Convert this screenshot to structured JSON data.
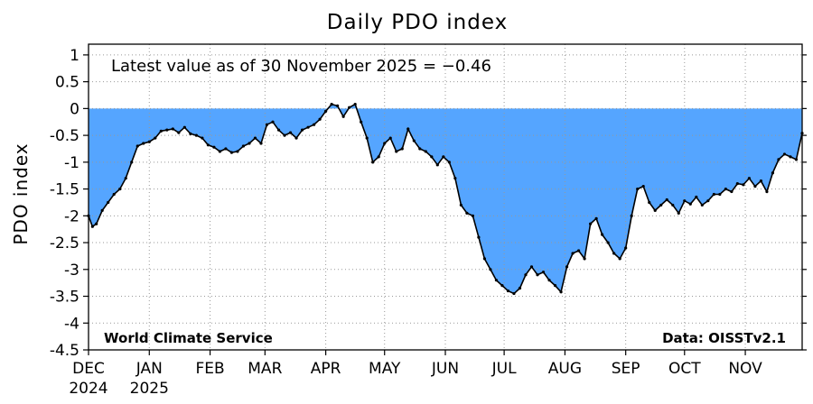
{
  "chart_data": {
    "type": "area",
    "title": "Daily PDO index",
    "ylabel": "PDO index",
    "xlabel": "",
    "annotation": "Latest value as of 30 November 2025 = −0.46",
    "credit_left": "World Climate Service",
    "credit_right": "Data: OISSTv2.1",
    "ylim": [
      -4.5,
      1.2
    ],
    "yticks": [
      1,
      0.5,
      0,
      -0.5,
      -1,
      -1.5,
      -2,
      -2.5,
      -3,
      -3.5,
      -4,
      -4.5
    ],
    "ytick_labels": [
      "1",
      "0.5",
      "0",
      "-0.5",
      "-1",
      "-1.5",
      "-2",
      "-2.5",
      "-3",
      "-3.5",
      "-4",
      "-4.5"
    ],
    "xlim": [
      "2024-12-01",
      "2025-11-30"
    ],
    "xticks": [
      {
        "date": "2024-12-01",
        "label": "DEC",
        "label2": "2024"
      },
      {
        "date": "2025-01-01",
        "label": "JAN",
        "label2": "2025"
      },
      {
        "date": "2025-02-01",
        "label": "FEB",
        "label2": ""
      },
      {
        "date": "2025-03-01",
        "label": "MAR",
        "label2": ""
      },
      {
        "date": "2025-04-01",
        "label": "APR",
        "label2": ""
      },
      {
        "date": "2025-05-01",
        "label": "MAY",
        "label2": ""
      },
      {
        "date": "2025-06-01",
        "label": "JUN",
        "label2": ""
      },
      {
        "date": "2025-07-01",
        "label": "JUL",
        "label2": ""
      },
      {
        "date": "2025-08-01",
        "label": "AUG",
        "label2": ""
      },
      {
        "date": "2025-09-01",
        "label": "SEP",
        "label2": ""
      },
      {
        "date": "2025-10-01",
        "label": "OCT",
        "label2": ""
      },
      {
        "date": "2025-11-01",
        "label": "NOV",
        "label2": ""
      }
    ],
    "grid": true,
    "fill_color": "#55a5ff",
    "line_color": "#000000",
    "series": [
      {
        "x": [
          "2024-12-01",
          "2024-12-03",
          "2024-12-05",
          "2024-12-08",
          "2024-12-11",
          "2024-12-14",
          "2024-12-17",
          "2024-12-20",
          "2024-12-23",
          "2024-12-26",
          "2024-12-29",
          "2025-01-01",
          "2025-01-04",
          "2025-01-07",
          "2025-01-10",
          "2025-01-13",
          "2025-01-16",
          "2025-01-19",
          "2025-01-22",
          "2025-01-25",
          "2025-01-28",
          "2025-01-31",
          "2025-02-03",
          "2025-02-06",
          "2025-02-09",
          "2025-02-12",
          "2025-02-15",
          "2025-02-18",
          "2025-02-21",
          "2025-02-24",
          "2025-02-27",
          "2025-03-02",
          "2025-03-05",
          "2025-03-08",
          "2025-03-11",
          "2025-03-14",
          "2025-03-17",
          "2025-03-20",
          "2025-03-23",
          "2025-03-26",
          "2025-03-29",
          "2025-04-01",
          "2025-04-04",
          "2025-04-07",
          "2025-04-10",
          "2025-04-13",
          "2025-04-16",
          "2025-04-19",
          "2025-04-22",
          "2025-04-25",
          "2025-04-28",
          "2025-05-01",
          "2025-05-04",
          "2025-05-07",
          "2025-05-10",
          "2025-05-13",
          "2025-05-16",
          "2025-05-19",
          "2025-05-22",
          "2025-05-25",
          "2025-05-28",
          "2025-05-31",
          "2025-06-03",
          "2025-06-06",
          "2025-06-09",
          "2025-06-12",
          "2025-06-15",
          "2025-06-18",
          "2025-06-21",
          "2025-06-24",
          "2025-06-27",
          "2025-06-30",
          "2025-07-03",
          "2025-07-06",
          "2025-07-09",
          "2025-07-12",
          "2025-07-15",
          "2025-07-18",
          "2025-07-21",
          "2025-07-24",
          "2025-07-27",
          "2025-07-30",
          "2025-08-02",
          "2025-08-05",
          "2025-08-08",
          "2025-08-11",
          "2025-08-14",
          "2025-08-17",
          "2025-08-20",
          "2025-08-23",
          "2025-08-26",
          "2025-08-29",
          "2025-09-01",
          "2025-09-04",
          "2025-09-07",
          "2025-09-10",
          "2025-09-13",
          "2025-09-16",
          "2025-09-19",
          "2025-09-22",
          "2025-09-25",
          "2025-09-28",
          "2025-10-01",
          "2025-10-04",
          "2025-10-07",
          "2025-10-10",
          "2025-10-13",
          "2025-10-16",
          "2025-10-19",
          "2025-10-22",
          "2025-10-25",
          "2025-10-28",
          "2025-10-31",
          "2025-11-03",
          "2025-11-06",
          "2025-11-09",
          "2025-11-12",
          "2025-11-15",
          "2025-11-18",
          "2025-11-21",
          "2025-11-24",
          "2025-11-27",
          "2025-11-30"
        ],
        "y": [
          -2.0,
          -2.2,
          -2.15,
          -1.9,
          -1.75,
          -1.6,
          -1.5,
          -1.3,
          -1.0,
          -0.7,
          -0.65,
          -0.62,
          -0.55,
          -0.42,
          -0.4,
          -0.38,
          -0.45,
          -0.35,
          -0.47,
          -0.5,
          -0.55,
          -0.68,
          -0.72,
          -0.8,
          -0.75,
          -0.82,
          -0.8,
          -0.7,
          -0.65,
          -0.55,
          -0.65,
          -0.3,
          -0.25,
          -0.4,
          -0.5,
          -0.45,
          -0.55,
          -0.4,
          -0.35,
          -0.3,
          -0.2,
          -0.05,
          0.08,
          0.05,
          -0.15,
          0.02,
          0.08,
          -0.25,
          -0.55,
          -1.0,
          -0.9,
          -0.65,
          -0.55,
          -0.8,
          -0.75,
          -0.38,
          -0.6,
          -0.75,
          -0.8,
          -0.9,
          -1.05,
          -0.9,
          -1.0,
          -1.3,
          -1.8,
          -1.95,
          -2.0,
          -2.4,
          -2.8,
          -3.0,
          -3.2,
          -3.3,
          -3.4,
          -3.45,
          -3.35,
          -3.1,
          -2.95,
          -3.1,
          -3.05,
          -3.2,
          -3.3,
          -3.42,
          -2.95,
          -2.7,
          -2.65,
          -2.8,
          -2.15,
          -2.05,
          -2.35,
          -2.5,
          -2.7,
          -2.8,
          -2.6,
          -2.0,
          -1.5,
          -1.45,
          -1.75,
          -1.9,
          -1.8,
          -1.7,
          -1.8,
          -1.95,
          -1.72,
          -1.78,
          -1.65,
          -1.8,
          -1.72,
          -1.6,
          -1.6,
          -1.5,
          -1.55,
          -1.4,
          -1.42,
          -1.3,
          -1.45,
          -1.35,
          -1.55,
          -1.2,
          -0.95,
          -0.85,
          -0.9,
          -0.95,
          -0.46
        ]
      }
    ]
  }
}
